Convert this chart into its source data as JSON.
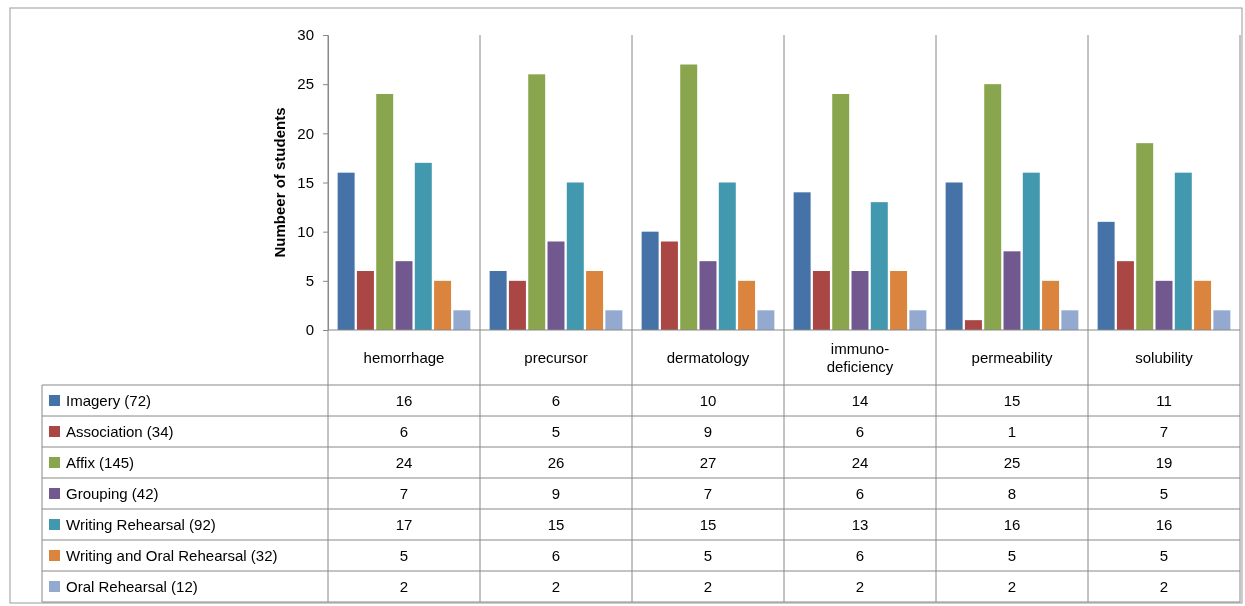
{
  "chart_data": {
    "type": "bar",
    "ylabel": "Numbeer of students",
    "categories": [
      "hemorrhage",
      "precursor",
      "dermatology",
      "immuno-deficiency",
      "permeability",
      "solubility"
    ],
    "ylim": [
      0,
      30
    ],
    "yticks": [
      0,
      5,
      10,
      15,
      20,
      25,
      30
    ],
    "grid": false,
    "legend": "bottom",
    "data_labels": true,
    "series": [
      {
        "name": "Imagery (72)",
        "color": "#4572a7",
        "values": [
          16,
          6,
          10,
          14,
          15,
          11
        ]
      },
      {
        "name": "Association (34)",
        "color": "#aa4643",
        "values": [
          6,
          5,
          9,
          6,
          1,
          7
        ]
      },
      {
        "name": "Affix (145)",
        "color": "#89a54e",
        "values": [
          24,
          26,
          27,
          24,
          25,
          19
        ]
      },
      {
        "name": "Grouping (42)",
        "color": "#71588f",
        "values": [
          7,
          9,
          7,
          6,
          8,
          5
        ]
      },
      {
        "name": "Writing Rehearsal (92)",
        "color": "#4198af",
        "values": [
          17,
          15,
          15,
          13,
          16,
          16
        ]
      },
      {
        "name": "Writing and Oral Rehearsal (32)",
        "color": "#db843d",
        "values": [
          5,
          6,
          5,
          6,
          5,
          5
        ]
      },
      {
        "name": "Oral Rehearsal (12)",
        "color": "#93a9cf",
        "values": [
          2,
          2,
          2,
          2,
          2,
          2
        ]
      }
    ]
  }
}
